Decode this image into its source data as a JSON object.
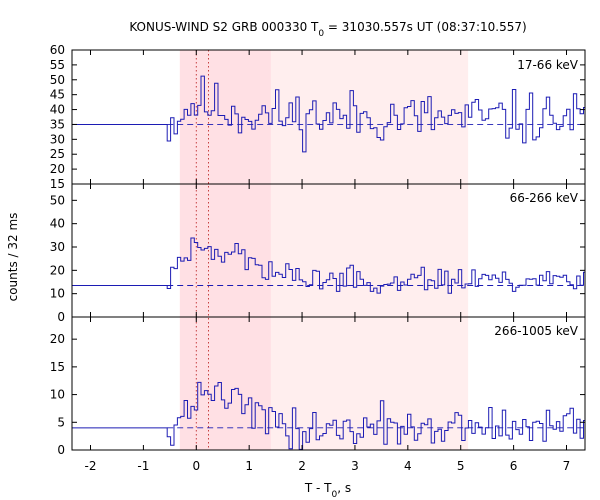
{
  "chart_data": {
    "type": "line",
    "title_main": "KONUS-WIND S2 GRB 000330 T",
    "title_sub": "0",
    "title_rest": " = 31030.557s UT (08:37:10.557)",
    "xlabel_main": "T - T",
    "xlabel_sub": "0",
    "xlabel_rest": ", s",
    "ylabel": "counts / 32 ms",
    "xlim": [
      -2.35,
      7.35
    ],
    "xticks": [
      -2,
      -1,
      0,
      1,
      2,
      3,
      4,
      5,
      6,
      7
    ],
    "shaded_intervals": [
      {
        "from": -0.31,
        "to": 5.14,
        "color": "#ffeeee"
      },
      {
        "from": -0.31,
        "to": 1.41,
        "color": "#ffe0e4"
      }
    ],
    "reference_lines_x": [
      0.0,
      0.23
    ],
    "panels": [
      {
        "band": "17-66 keV",
        "ylim": [
          15,
          60
        ],
        "yticks": [
          15,
          20,
          25,
          30,
          35,
          40,
          45,
          50,
          55,
          60
        ],
        "background": 35.0,
        "series_seed": 11,
        "profile": [
          [
            -0.55,
            35
          ],
          [
            -0.3,
            39
          ],
          [
            0.0,
            43
          ],
          [
            0.3,
            41
          ],
          [
            0.8,
            39
          ],
          [
            1.4,
            38
          ],
          [
            5.0,
            37
          ],
          [
            7.35,
            37
          ]
        ],
        "noise": 5.5
      },
      {
        "band": "66-266 keV",
        "ylim": [
          0,
          57
        ],
        "yticks": [
          0,
          10,
          20,
          30,
          40,
          50
        ],
        "background": 13.5,
        "series_seed": 23,
        "profile": [
          [
            -0.55,
            14
          ],
          [
            -0.4,
            24
          ],
          [
            -0.1,
            30
          ],
          [
            0.25,
            28
          ],
          [
            0.55,
            30
          ],
          [
            0.8,
            26
          ],
          [
            1.2,
            20
          ],
          [
            1.6,
            17
          ],
          [
            3.0,
            16
          ],
          [
            5.2,
            16
          ],
          [
            7.35,
            16
          ]
        ],
        "noise": 3.5
      },
      {
        "band": "266-1005 keV",
        "ylim": [
          0,
          24
        ],
        "yticks": [
          0,
          5,
          10,
          15,
          20
        ],
        "background": 4.0,
        "series_seed": 37,
        "profile": [
          [
            -0.55,
            4
          ],
          [
            -0.4,
            6
          ],
          [
            -0.1,
            8
          ],
          [
            0.25,
            11
          ],
          [
            0.5,
            9.5
          ],
          [
            0.9,
            8
          ],
          [
            1.3,
            5
          ],
          [
            2.0,
            3.5
          ],
          [
            3.5,
            4
          ],
          [
            5.5,
            4
          ],
          [
            7.35,
            4
          ]
        ],
        "noise": 2.2
      }
    ],
    "colors": {
      "series": "#1c1cb4",
      "axes": "#000000",
      "reference": "#c03030"
    }
  }
}
